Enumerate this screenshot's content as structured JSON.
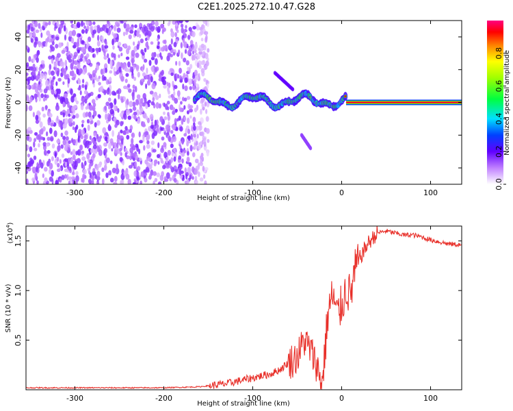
{
  "title": "C2E1.2025.272.10.47.G28",
  "colors": {
    "snr_line": "#e8302a",
    "frame": "#000000",
    "background": "#ffffff"
  },
  "chart_data": [
    {
      "type": "heatmap",
      "name": "spectrogram",
      "xlabel": "Height of straight line (km)",
      "ylabel": "Frequency (Hz)",
      "xlim": [
        -355,
        135
      ],
      "ylim": [
        -50,
        50
      ],
      "xticks": [
        -300,
        -200,
        -100,
        0,
        100
      ],
      "yticks": [
        -40,
        -20,
        0,
        20,
        40
      ],
      "colorbar": {
        "label": "Normalized spectral amplitude",
        "range": [
          0,
          1
        ],
        "ticks": [
          0.0,
          0.2,
          0.4,
          0.6,
          0.8
        ]
      },
      "features": [
        {
          "description": "diffuse noise region",
          "x_range": [
            -355,
            -150
          ],
          "y_range": [
            -50,
            50
          ],
          "amplitude": 0.15
        },
        {
          "description": "meandering signal band",
          "x_range": [
            -165,
            5
          ],
          "y_center": 1,
          "amplitude": 0.6
        },
        {
          "description": "side branch upper",
          "x_range": [
            -75,
            -55
          ],
          "y_range": [
            8,
            18
          ],
          "amplitude": 0.2
        },
        {
          "description": "side branch lower",
          "x_range": [
            -45,
            -35
          ],
          "y_range": [
            -28,
            -20
          ],
          "amplitude": 0.15
        },
        {
          "description": "steady carrier line",
          "x_range": [
            5,
            135
          ],
          "y_center": 0,
          "amplitude": 1.0
        }
      ]
    },
    {
      "type": "line",
      "name": "snr",
      "xlabel": "Height of straight line (km)",
      "ylabel": "SNR (10 * v/v)",
      "y_multiplier": "(x10^4)",
      "xlim": [
        -355,
        135
      ],
      "ylim": [
        0,
        1.65
      ],
      "xticks": [
        -300,
        -200,
        -100,
        0,
        100
      ],
      "yticks": [
        0.5,
        1.0,
        1.5
      ],
      "series": [
        {
          "x": [
            -355,
            -300,
            -250,
            -200,
            -160,
            -130,
            -110,
            -95,
            -80,
            -70,
            -60,
            -50,
            -42,
            -35,
            -28,
            -22,
            -15,
            -10,
            -5,
            0,
            5,
            10,
            15,
            20,
            30,
            40,
            50,
            60,
            70,
            80,
            90,
            100,
            110,
            120,
            135
          ],
          "y": [
            0.02,
            0.02,
            0.02,
            0.02,
            0.03,
            0.06,
            0.1,
            0.13,
            0.16,
            0.2,
            0.27,
            0.33,
            0.5,
            0.4,
            0.25,
            0.05,
            0.8,
            0.95,
            0.75,
            0.85,
            1.02,
            0.95,
            1.2,
            1.32,
            1.48,
            1.58,
            1.6,
            1.58,
            1.56,
            1.56,
            1.54,
            1.51,
            1.49,
            1.47,
            1.46
          ]
        }
      ]
    }
  ]
}
